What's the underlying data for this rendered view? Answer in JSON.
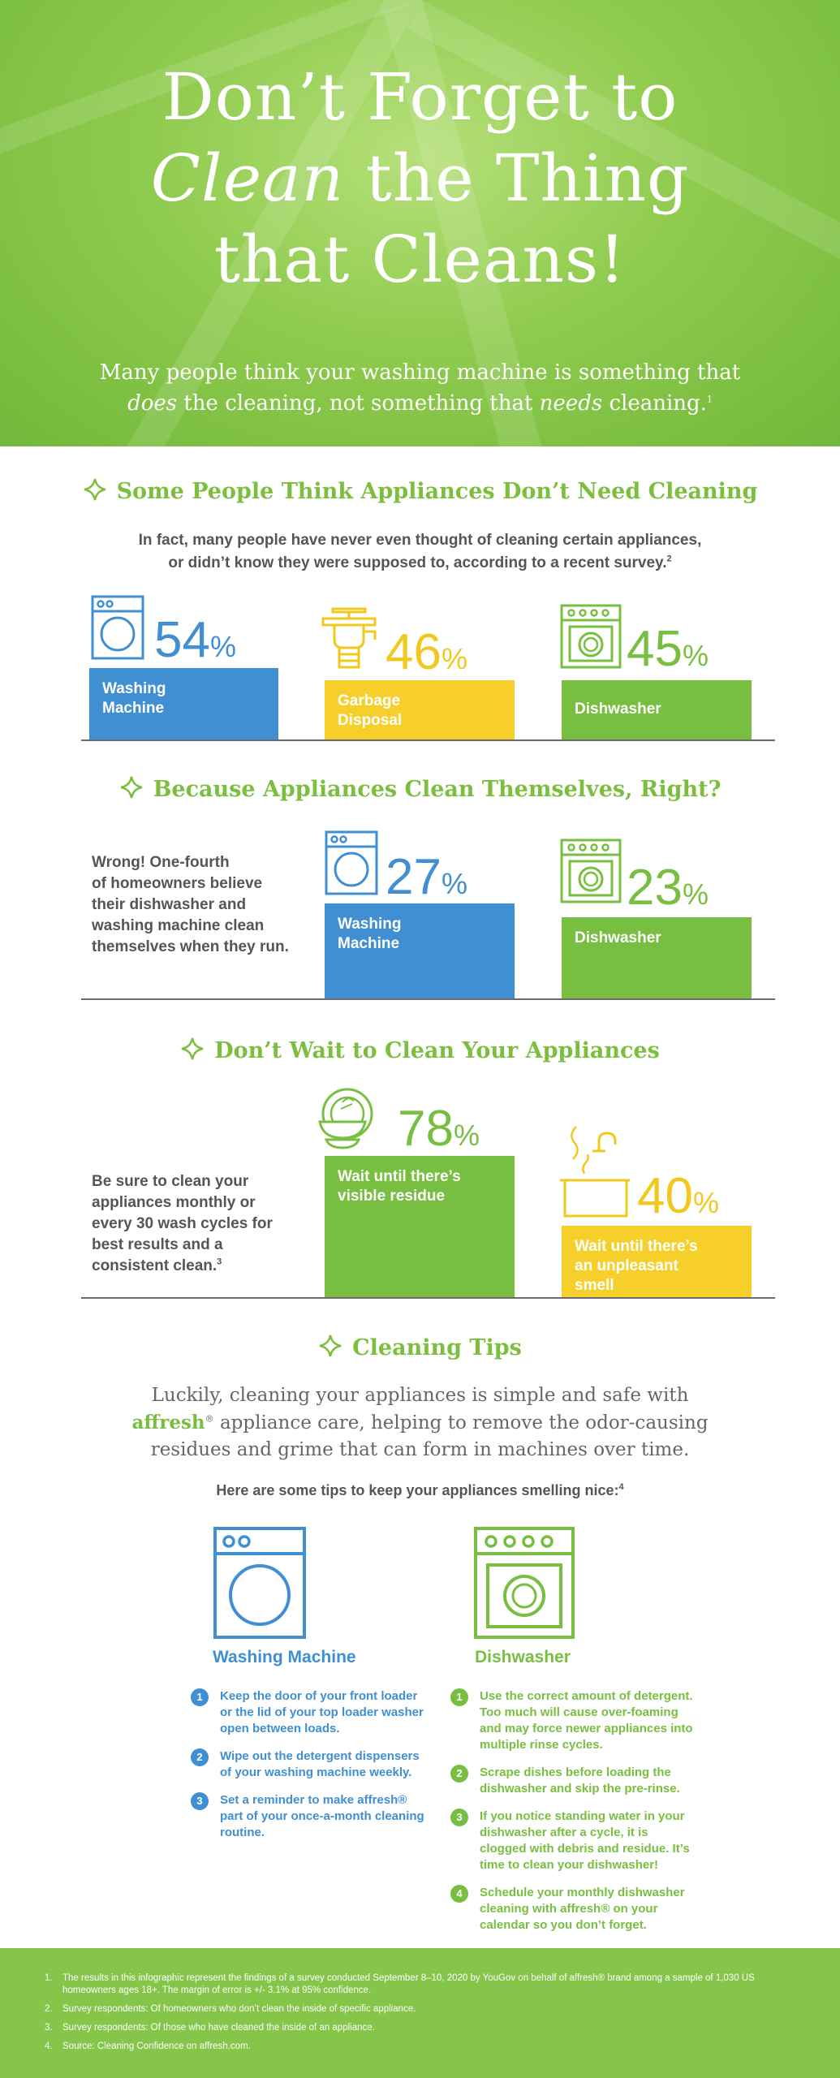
{
  "hero": {
    "title_line1": "Don’t Forget to",
    "title_line2_italic": "Clean",
    "title_line2_rest": " the Thing",
    "title_line3": "that Cleans!",
    "sub_part1": "Many people think your washing machine is something that",
    "sub_does": "does",
    "sub_part2": " the cleaning, not something that ",
    "sub_needs": "needs",
    "sub_part3": " cleaning.",
    "sub_note": "1"
  },
  "section1": {
    "heading": "Some People Think Appliances Don’t Need Cleaning",
    "intro_line1": "In fact, many people have never even thought of cleaning certain appliances,",
    "intro_line2": "or didn’t know they were supposed to, according to a recent survey.",
    "intro_note": "2",
    "items": [
      {
        "value": "54",
        "unit": "%",
        "label_line1": "Washing",
        "label_line2": "Machine"
      },
      {
        "value": "46",
        "unit": "%",
        "label_line1": "Garbage",
        "label_line2": "Disposal"
      },
      {
        "value": "45",
        "unit": "%",
        "label_line1": "Dishwasher",
        "label_line2": ""
      }
    ]
  },
  "section2": {
    "heading": "Because Appliances Clean Themselves, Right?",
    "side_line1": "Wrong! One-fourth",
    "side_line2": "of homeowners believe",
    "side_line3": "their dishwasher and",
    "side_line4": "washing machine clean",
    "side_line5": "themselves when they run.",
    "items": [
      {
        "value": "27",
        "unit": "%",
        "label_line1": "Washing",
        "label_line2": "Machine"
      },
      {
        "value": "23",
        "unit": "%",
        "label_line1": "Dishwasher",
        "label_line2": ""
      }
    ]
  },
  "section3": {
    "heading": "Don’t Wait to Clean Your Appliances",
    "side_line1": "Be sure to clean your",
    "side_line2": "appliances monthly or",
    "side_line3": "every 30 wash cycles for",
    "side_line4": "best results and a",
    "side_line5": "consistent clean.",
    "side_note": "3",
    "items": [
      {
        "value": "78",
        "unit": "%",
        "label_line1": "Wait until there’s",
        "label_line2": "visible residue",
        "label_line3": ""
      },
      {
        "value": "40",
        "unit": "%",
        "label_line1": "Wait until there’s",
        "label_line2": "an unpleasant",
        "label_line3": "smell"
      }
    ]
  },
  "tips": {
    "heading": "Cleaning Tips",
    "body_line1": "Luckily, cleaning your appliances is simple and safe with",
    "brand": "affresh",
    "reg": "®",
    "body_line2_rest": " appliance care, helping to remove the odor-causing",
    "body_line3": "residues and grime that can form in machines over time.",
    "intro": "Here are some tips to keep your appliances smelling nice:",
    "intro_note": "4",
    "washer_title": "Washing Machine",
    "dishwasher_title": "Dishwasher",
    "washer_tips": [
      {
        "n": "1",
        "text": "Keep the door of your front loader or the lid of your top loader washer open between loads."
      },
      {
        "n": "2",
        "text": "Wipe out the detergent dispensers of your washing machine weekly."
      },
      {
        "n": "3",
        "text": "Set a reminder to make affresh® part of your once-a-month cleaning routine."
      }
    ],
    "dishwasher_tips": [
      {
        "n": "1",
        "text": "Use the correct amount of detergent. Too much will cause over-foaming and may force newer appliances into multiple rinse cycles."
      },
      {
        "n": "2",
        "text": "Scrape dishes before loading the dishwasher and skip the pre-rinse."
      },
      {
        "n": "3",
        "text": "If you notice standing water in your dishwasher after a cycle, it is clogged with debris and residue. It’s time to clean your dishwasher!"
      },
      {
        "n": "4",
        "text": "Schedule your monthly dishwasher cleaning with affresh® on your calendar so you don’t forget."
      }
    ]
  },
  "footnotes": [
    {
      "n": "1.",
      "text": "The results in this infographic represent the findings of a survey conducted September 8–10, 2020 by YouGov on behalf of affresh® brand among a sample of 1,030 US homeowners ages 18+. The margin of error is +/- 3.1% at 95% confidence."
    },
    {
      "n": "2.",
      "text": "Survey respondents: Of homeowners who don’t clean the inside of specific appliance."
    },
    {
      "n": "3.",
      "text": "Survey respondents: Of those who have cleaned the inside of an appliance."
    },
    {
      "n": "4.",
      "text": "Source: Cleaning Confidence on affresh.com."
    }
  ],
  "colors": {
    "green": "#78be40",
    "blue": "#3f8fd2",
    "yellow": "#f7cf2b"
  }
}
